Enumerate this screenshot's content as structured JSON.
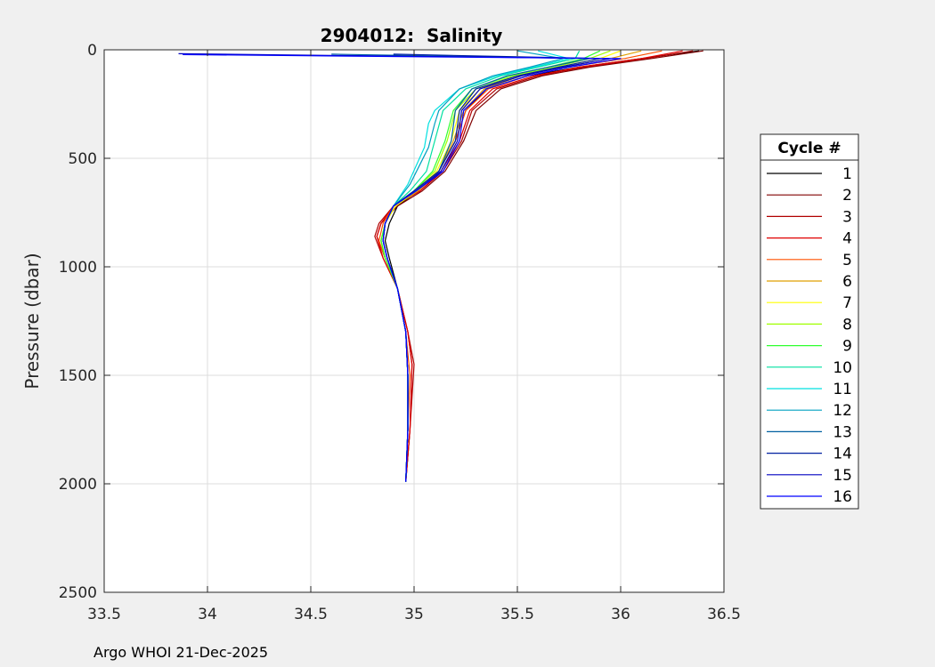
{
  "chart_data": {
    "type": "line",
    "title": "2904012:  Salinity",
    "xlabel": "",
    "ylabel": "Pressure (dbar)",
    "xlim": [
      33.5,
      36.5
    ],
    "ylim": [
      0,
      2500
    ],
    "y_reversed": true,
    "x_ticks": [
      "33.5",
      "34",
      "34.5",
      "35",
      "35.5",
      "36",
      "36.5"
    ],
    "y_ticks": [
      "0",
      "500",
      "1000",
      "1500",
      "2000",
      "2500"
    ],
    "grid": true,
    "legend": {
      "title": "Cycle #",
      "placement": "right"
    },
    "series": [
      {
        "name": "1",
        "color": "#000000",
        "x": [
          36.38,
          36.1,
          35.8,
          35.55,
          35.35,
          35.25,
          35.2,
          35.12,
          35.02,
          34.92,
          34.88,
          34.86,
          34.88,
          34.92,
          34.96,
          34.97,
          34.97,
          34.96
        ],
        "y": [
          5,
          40,
          80,
          120,
          180,
          280,
          420,
          560,
          650,
          720,
          800,
          880,
          960,
          1100,
          1300,
          1500,
          1750,
          1990
        ]
      },
      {
        "name": "2",
        "color": "#800000",
        "x": [
          36.4,
          36.15,
          35.85,
          35.62,
          35.42,
          35.3,
          35.24,
          35.15,
          35.04,
          34.92,
          34.84,
          34.82,
          34.86,
          34.92,
          34.97,
          34.99,
          34.98,
          34.96
        ],
        "y": [
          5,
          40,
          80,
          120,
          180,
          280,
          420,
          560,
          650,
          720,
          800,
          860,
          960,
          1100,
          1300,
          1450,
          1750,
          1990
        ]
      },
      {
        "name": "3",
        "color": "#b00000",
        "x": [
          36.35,
          36.12,
          35.82,
          35.6,
          35.4,
          35.28,
          35.23,
          35.14,
          35.03,
          34.9,
          34.83,
          34.81,
          34.85,
          34.92,
          34.97,
          35.0,
          34.98,
          34.96
        ],
        "y": [
          5,
          40,
          80,
          120,
          180,
          280,
          420,
          560,
          650,
          720,
          800,
          860,
          960,
          1100,
          1300,
          1450,
          1750,
          1990
        ]
      },
      {
        "name": "4",
        "color": "#e00000",
        "x": [
          36.3,
          36.1,
          35.8,
          35.58,
          35.38,
          35.27,
          35.22,
          35.13,
          35.03,
          34.9,
          34.84,
          34.82,
          34.85,
          34.92,
          34.97,
          34.99,
          34.98,
          34.96
        ],
        "y": [
          5,
          40,
          80,
          120,
          180,
          280,
          420,
          560,
          650,
          720,
          800,
          860,
          960,
          1100,
          1300,
          1450,
          1750,
          1990
        ]
      },
      {
        "name": "5",
        "color": "#ff5000",
        "x": [
          36.2,
          36.02,
          35.75,
          35.55,
          35.36,
          35.25,
          35.2,
          35.12,
          35.02,
          34.9,
          34.85,
          34.83,
          34.86,
          34.92,
          34.96,
          34.98,
          34.97,
          34.96
        ],
        "y": [
          5,
          40,
          80,
          120,
          180,
          280,
          420,
          560,
          650,
          720,
          800,
          880,
          960,
          1100,
          1300,
          1500,
          1750,
          1990
        ]
      },
      {
        "name": "6",
        "color": "#e0a000",
        "x": [
          36.1,
          35.95,
          35.72,
          35.52,
          35.34,
          35.24,
          35.19,
          35.12,
          35.02,
          34.91,
          34.86,
          34.84,
          34.86,
          34.92,
          34.96,
          34.97,
          34.97,
          34.96
        ],
        "y": [
          5,
          40,
          80,
          120,
          180,
          280,
          420,
          560,
          650,
          720,
          800,
          880,
          960,
          1100,
          1300,
          1500,
          1750,
          1990
        ]
      },
      {
        "name": "7",
        "color": "#ffff00",
        "x": [
          36.0,
          35.9,
          35.7,
          35.5,
          35.32,
          35.22,
          35.18,
          35.11,
          35.01,
          34.91,
          34.86,
          34.84,
          34.86,
          34.92,
          34.96,
          34.97,
          34.97,
          34.96
        ],
        "y": [
          5,
          40,
          80,
          120,
          180,
          280,
          420,
          560,
          650,
          720,
          800,
          880,
          960,
          1100,
          1300,
          1500,
          1750,
          1990
        ]
      },
      {
        "name": "8",
        "color": "#a0ff00",
        "x": [
          35.95,
          35.85,
          35.68,
          35.48,
          35.3,
          35.2,
          35.16,
          35.1,
          35.0,
          34.9,
          34.86,
          34.84,
          34.86,
          34.92,
          34.96,
          34.97,
          34.97,
          34.96
        ],
        "y": [
          5,
          40,
          80,
          120,
          180,
          280,
          420,
          560,
          650,
          720,
          800,
          880,
          960,
          1100,
          1300,
          1500,
          1750,
          1990
        ]
      },
      {
        "name": "9",
        "color": "#30ff30",
        "x": [
          35.9,
          35.82,
          35.65,
          35.46,
          35.28,
          35.19,
          35.15,
          35.09,
          35.0,
          34.9,
          34.86,
          34.84,
          34.86,
          34.92,
          34.96,
          34.97,
          34.97,
          34.96
        ],
        "y": [
          5,
          40,
          80,
          120,
          180,
          280,
          420,
          560,
          650,
          720,
          800,
          880,
          960,
          1100,
          1300,
          1500,
          1750,
          1990
        ]
      },
      {
        "name": "10",
        "color": "#00e0a0",
        "x": [
          35.8,
          35.78,
          35.6,
          35.42,
          35.25,
          35.14,
          35.1,
          35.06,
          34.98,
          34.9,
          34.86,
          34.85,
          34.87,
          34.92,
          34.96,
          34.97,
          34.97,
          34.96
        ],
        "y": [
          5,
          40,
          80,
          120,
          180,
          280,
          420,
          560,
          650,
          720,
          800,
          880,
          960,
          1100,
          1300,
          1500,
          1750,
          1990
        ]
      },
      {
        "name": "11",
        "color": "#00e0e0",
        "x": [
          35.6,
          35.75,
          35.58,
          35.4,
          35.22,
          35.1,
          35.07,
          35.05,
          34.97,
          34.9,
          34.86,
          34.85,
          34.87,
          34.92,
          34.96,
          34.97,
          34.97,
          34.96
        ],
        "y": [
          5,
          40,
          80,
          120,
          180,
          280,
          340,
          450,
          620,
          720,
          800,
          880,
          960,
          1100,
          1300,
          1500,
          1750,
          1990
        ]
      },
      {
        "name": "12",
        "color": "#00a0c0",
        "x": [
          35.5,
          35.72,
          35.56,
          35.38,
          35.22,
          35.12,
          35.1,
          35.07,
          34.98,
          34.9,
          34.86,
          34.85,
          34.87,
          34.92,
          34.96,
          34.97,
          34.97,
          34.96
        ],
        "y": [
          5,
          40,
          80,
          120,
          180,
          280,
          340,
          450,
          620,
          720,
          800,
          880,
          960,
          1100,
          1300,
          1500,
          1750,
          1990
        ]
      },
      {
        "name": "13",
        "color": "#0060a0",
        "x": [
          34.6,
          35.85,
          35.65,
          35.45,
          35.28,
          35.2,
          35.18,
          35.12,
          35.0,
          34.9,
          34.86,
          34.85,
          34.87,
          34.92,
          34.96,
          34.97,
          34.97,
          34.96
        ],
        "y": [
          20,
          40,
          80,
          120,
          180,
          280,
          420,
          560,
          650,
          720,
          800,
          880,
          960,
          1100,
          1300,
          1500,
          1750,
          1990
        ]
      },
      {
        "name": "14",
        "color": "#0020a0",
        "x": [
          34.9,
          35.9,
          35.7,
          35.5,
          35.3,
          35.22,
          35.2,
          35.12,
          35.0,
          34.9,
          34.86,
          34.85,
          34.87,
          34.92,
          34.96,
          34.97,
          34.97,
          34.96
        ],
        "y": [
          20,
          40,
          80,
          120,
          180,
          280,
          420,
          560,
          650,
          720,
          800,
          880,
          960,
          1100,
          1300,
          1500,
          1750,
          1990
        ]
      },
      {
        "name": "15",
        "color": "#0000c0",
        "x": [
          33.86,
          35.95,
          35.72,
          35.52,
          35.32,
          35.23,
          35.21,
          35.13,
          35.01,
          34.9,
          34.86,
          34.85,
          34.87,
          34.92,
          34.96,
          34.97,
          34.97,
          34.96
        ],
        "y": [
          18,
          40,
          80,
          120,
          180,
          280,
          420,
          560,
          650,
          720,
          800,
          880,
          960,
          1100,
          1300,
          1500,
          1750,
          1990
        ]
      },
      {
        "name": "16",
        "color": "#0000ff",
        "x": [
          33.88,
          36.0,
          35.75,
          35.55,
          35.35,
          35.24,
          35.22,
          35.14,
          35.01,
          34.9,
          34.86,
          34.85,
          34.87,
          34.92,
          34.96,
          34.97,
          34.97,
          34.96
        ],
        "y": [
          22,
          40,
          80,
          120,
          180,
          280,
          420,
          560,
          650,
          720,
          800,
          880,
          960,
          1100,
          1300,
          1500,
          1750,
          1990
        ]
      }
    ]
  },
  "footer": {
    "text": "Argo WHOI 21-Dec-2025"
  }
}
